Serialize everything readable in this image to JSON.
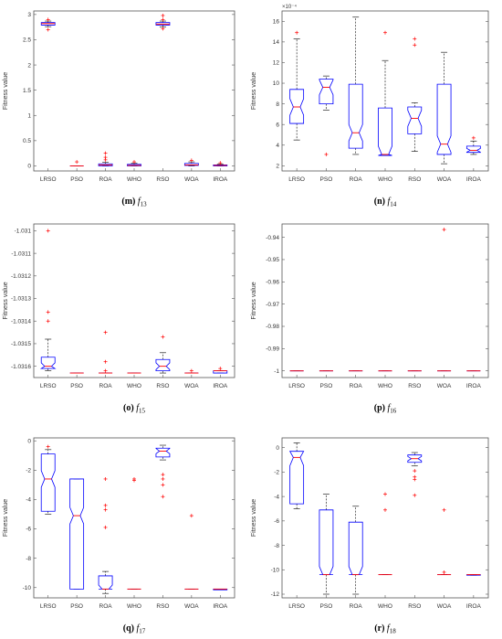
{
  "colors": {
    "box": "#0000ff",
    "median": "#ff0000",
    "whisker": "#000000",
    "outlier": "#ff0000",
    "axes": "#555555"
  },
  "chart_data": [
    {
      "type": "box",
      "caption": {
        "letter": "(m)",
        "fn": "f",
        "sub": "13"
      },
      "ylabel": "Fitness value",
      "categories": [
        "LRSO",
        "PSO",
        "ROA",
        "WHO",
        "RSO",
        "WOA",
        "IROA"
      ],
      "yticks": [
        "0",
        "0.5",
        "1",
        "1.5",
        "2",
        "2.5",
        "3"
      ],
      "ylim": [
        -0.1,
        3.07
      ],
      "grid": false,
      "boxes": [
        {
          "q1": 2.79,
          "med": 2.82,
          "q3": 2.84,
          "wlo": 2.76,
          "whi": 2.87,
          "out": [
            2.7,
            2.9
          ],
          "notch": false
        },
        {
          "q1": 0.0,
          "med": 0.0,
          "q3": 0.0,
          "wlo": 0.0,
          "whi": 0.0,
          "out": [
            0.08
          ],
          "notch": false
        },
        {
          "q1": 0.0,
          "med": 0.02,
          "q3": 0.04,
          "wlo": 0.0,
          "whi": 0.07,
          "out": [
            0.12,
            0.17,
            0.25
          ],
          "notch": false
        },
        {
          "q1": 0.0,
          "med": 0.01,
          "q3": 0.03,
          "wlo": 0.0,
          "whi": 0.05,
          "out": [
            0.08
          ],
          "notch": false
        },
        {
          "q1": 2.79,
          "med": 2.81,
          "q3": 2.84,
          "wlo": 2.75,
          "whi": 2.87,
          "out": [
            2.72,
            2.9,
            2.98
          ],
          "notch": false
        },
        {
          "q1": 0.01,
          "med": 0.02,
          "q3": 0.05,
          "wlo": 0.0,
          "whi": 0.08,
          "out": [
            0.11
          ],
          "notch": false
        },
        {
          "q1": 0.0,
          "med": 0.01,
          "q3": 0.02,
          "wlo": 0.0,
          "whi": 0.04,
          "out": [
            0.06
          ],
          "notch": false
        }
      ]
    },
    {
      "type": "box",
      "caption": {
        "letter": "(n)",
        "fn": "f",
        "sub": "14"
      },
      "ylabel": "Fitness value",
      "multiplier": "×10⁻⁴",
      "categories": [
        "LRSO",
        "PSO",
        "ROA",
        "WHO",
        "RSO",
        "WOA",
        "IROA"
      ],
      "yticks": [
        "2",
        "4",
        "6",
        "8",
        "10",
        "12",
        "14",
        "16"
      ],
      "ylim": [
        1.5,
        17.0
      ],
      "grid": false,
      "boxes": [
        {
          "q1": 6.1,
          "med": 7.7,
          "q3": 9.4,
          "wlo": 4.5,
          "whi": 14.3,
          "out": [
            14.9
          ],
          "notch": true
        },
        {
          "q1": 8.0,
          "med": 9.6,
          "q3": 10.4,
          "wlo": 7.4,
          "whi": 10.7,
          "out": [
            3.1
          ],
          "notch": true
        },
        {
          "q1": 3.7,
          "med": 5.2,
          "q3": 9.9,
          "wlo": 3.1,
          "whi": 16.4,
          "out": [],
          "notch": true
        },
        {
          "q1": 3.0,
          "med": 3.1,
          "q3": 7.6,
          "wlo": 3.0,
          "whi": 12.2,
          "out": [
            14.9
          ],
          "notch": true
        },
        {
          "q1": 5.1,
          "med": 6.6,
          "q3": 7.7,
          "wlo": 3.4,
          "whi": 8.1,
          "out": [
            13.7,
            14.3
          ],
          "notch": true
        },
        {
          "q1": 3.1,
          "med": 4.1,
          "q3": 9.9,
          "wlo": 2.2,
          "whi": 13.0,
          "out": [],
          "notch": true
        },
        {
          "q1": 3.3,
          "med": 3.5,
          "q3": 3.9,
          "wlo": 3.1,
          "whi": 4.4,
          "out": [
            4.7
          ],
          "notch": true
        }
      ]
    },
    {
      "type": "box",
      "caption": {
        "letter": "(o)",
        "fn": "f",
        "sub": "15"
      },
      "ylabel": "Fitness value",
      "categories": [
        "LRSO",
        "PSO",
        "ROA",
        "WHO",
        "RSO",
        "WOA",
        "IROA"
      ],
      "yticks": [
        "-1.0316",
        "-1.0315",
        "-1.0314",
        "-1.0313",
        "-1.0312",
        "-1.0311",
        "-1.031"
      ],
      "ylim": [
        -1.03165,
        -1.03097
      ],
      "grid": false,
      "boxes": [
        {
          "q1": -1.03161,
          "med": -1.0316,
          "q3": -1.03156,
          "wlo": -1.03162,
          "whi": -1.03148,
          "out": [
            -1.03136,
            -1.0314,
            -1.031
          ],
          "notch": true
        },
        {
          "q1": -1.03163,
          "med": -1.03163,
          "q3": -1.03163,
          "wlo": -1.03163,
          "whi": -1.03163,
          "out": [],
          "notch": false
        },
        {
          "q1": -1.03163,
          "med": -1.03163,
          "q3": -1.03163,
          "wlo": -1.03163,
          "whi": -1.03163,
          "out": [
            -1.03145,
            -1.03158,
            -1.03162
          ],
          "notch": false
        },
        {
          "q1": -1.03163,
          "med": -1.03163,
          "q3": -1.03163,
          "wlo": -1.03163,
          "whi": -1.03163,
          "out": [],
          "notch": false
        },
        {
          "q1": -1.03162,
          "med": -1.0316,
          "q3": -1.03157,
          "wlo": -1.03163,
          "whi": -1.03154,
          "out": [
            -1.03147
          ],
          "notch": true
        },
        {
          "q1": -1.03163,
          "med": -1.03163,
          "q3": -1.03163,
          "wlo": -1.03163,
          "whi": -1.03163,
          "out": [
            -1.03162
          ],
          "notch": false
        },
        {
          "q1": -1.03163,
          "med": -1.03162,
          "q3": -1.03162,
          "wlo": -1.03163,
          "whi": -1.03162,
          "out": [
            -1.03161
          ],
          "notch": false
        }
      ]
    },
    {
      "type": "box",
      "caption": {
        "letter": "(p)",
        "fn": "f",
        "sub": "16"
      },
      "ylabel": "Fitness value",
      "categories": [
        "LRSO",
        "PSO",
        "ROA",
        "WHO",
        "RSO",
        "WOA",
        "IROA"
      ],
      "yticks": [
        "-1",
        "-0.99",
        "-0.98",
        "-0.97",
        "-0.96",
        "-0.95",
        "-0.94"
      ],
      "ylim": [
        -1.003,
        -0.934
      ],
      "grid": false,
      "boxes": [
        {
          "q1": -1,
          "med": -1,
          "q3": -1,
          "wlo": -1,
          "whi": -1,
          "out": [],
          "notch": false
        },
        {
          "q1": -1,
          "med": -1,
          "q3": -1,
          "wlo": -1,
          "whi": -1,
          "out": [],
          "notch": false
        },
        {
          "q1": -1,
          "med": -1,
          "q3": -1,
          "wlo": -1,
          "whi": -1,
          "out": [],
          "notch": false
        },
        {
          "q1": -1,
          "med": -1,
          "q3": -1,
          "wlo": -1,
          "whi": -1,
          "out": [],
          "notch": false
        },
        {
          "q1": -1,
          "med": -1,
          "q3": -1,
          "wlo": -1,
          "whi": -1,
          "out": [],
          "notch": false
        },
        {
          "q1": -1,
          "med": -1,
          "q3": -1,
          "wlo": -1,
          "whi": -1,
          "out": [
            -0.9365
          ],
          "notch": false
        },
        {
          "q1": -1,
          "med": -1,
          "q3": -1,
          "wlo": -1,
          "whi": -1,
          "out": [],
          "notch": false
        }
      ]
    },
    {
      "type": "box",
      "caption": {
        "letter": "(q)",
        "fn": "f",
        "sub": "17"
      },
      "ylabel": "Fitness value",
      "categories": [
        "LRSO",
        "PSO",
        "ROA",
        "WHO",
        "RSO",
        "WOA",
        "IROA"
      ],
      "yticks": [
        "-10",
        "-8",
        "-6",
        "-4",
        "-2",
        "0"
      ],
      "ylim": [
        -10.7,
        0.2
      ],
      "grid": false,
      "boxes": [
        {
          "q1": -4.8,
          "med": -2.6,
          "q3": -0.9,
          "wlo": -5.0,
          "whi": -0.6,
          "out": [
            -0.4
          ],
          "notch": true
        },
        {
          "q1": -10.1,
          "med": -5.1,
          "q3": -2.6,
          "wlo": -10.1,
          "whi": -2.6,
          "out": [],
          "notch": true
        },
        {
          "q1": -10.1,
          "med": -10.1,
          "q3": -9.2,
          "wlo": -10.4,
          "whi": -8.9,
          "out": [
            -2.6,
            -4.4,
            -4.7,
            -5.9
          ],
          "notch": true
        },
        {
          "q1": -10.1,
          "med": -10.1,
          "q3": -10.1,
          "wlo": -10.1,
          "whi": -10.1,
          "out": [
            -2.6,
            -2.7
          ],
          "notch": false
        },
        {
          "q1": -1.1,
          "med": -0.7,
          "q3": -0.5,
          "wlo": -1.3,
          "whi": -0.3,
          "out": [
            -2.3,
            -2.6,
            -3.0,
            -3.8
          ],
          "notch": true
        },
        {
          "q1": -10.1,
          "med": -10.1,
          "q3": -10.1,
          "wlo": -10.1,
          "whi": -10.1,
          "out": [
            -5.1
          ],
          "notch": false
        },
        {
          "q1": -10.15,
          "med": -10.1,
          "q3": -10.1,
          "wlo": -10.15,
          "whi": -10.1,
          "out": [],
          "notch": false
        }
      ]
    },
    {
      "type": "box",
      "caption": {
        "letter": "(r)",
        "fn": "f",
        "sub": "18"
      },
      "ylabel": "Fitness value",
      "categories": [
        "LRSO",
        "PSO",
        "ROA",
        "WHO",
        "RSO",
        "WOA",
        "IROA"
      ],
      "yticks": [
        "-12",
        "-10",
        "-8",
        "-6",
        "-4",
        "-2",
        "0"
      ],
      "ylim": [
        -12.3,
        0.8
      ],
      "grid": false,
      "boxes": [
        {
          "q1": -4.6,
          "med": -0.8,
          "q3": -0.3,
          "wlo": -5.0,
          "whi": 0.4,
          "out": [],
          "notch": true
        },
        {
          "q1": -10.4,
          "med": -10.4,
          "q3": -5.1,
          "wlo": -12.0,
          "whi": -3.8,
          "out": [],
          "notch": true
        },
        {
          "q1": -10.4,
          "med": -10.4,
          "q3": -6.1,
          "wlo": -12.0,
          "whi": -4.8,
          "out": [],
          "notch": true
        },
        {
          "q1": -10.4,
          "med": -10.4,
          "q3": -10.4,
          "wlo": -10.4,
          "whi": -10.4,
          "out": [
            -3.8,
            -5.1
          ],
          "notch": false
        },
        {
          "q1": -1.2,
          "med": -0.9,
          "q3": -0.6,
          "wlo": -1.5,
          "whi": -0.4,
          "out": [
            -1.9,
            -2.4,
            -2.6,
            -3.9
          ],
          "notch": true
        },
        {
          "q1": -10.4,
          "med": -10.4,
          "q3": -10.4,
          "wlo": -10.4,
          "whi": -10.4,
          "out": [
            -5.1,
            -10.2
          ],
          "notch": false
        },
        {
          "q1": -10.45,
          "med": -10.4,
          "q3": -10.4,
          "wlo": -10.45,
          "whi": -10.4,
          "out": [],
          "notch": false
        }
      ]
    }
  ]
}
